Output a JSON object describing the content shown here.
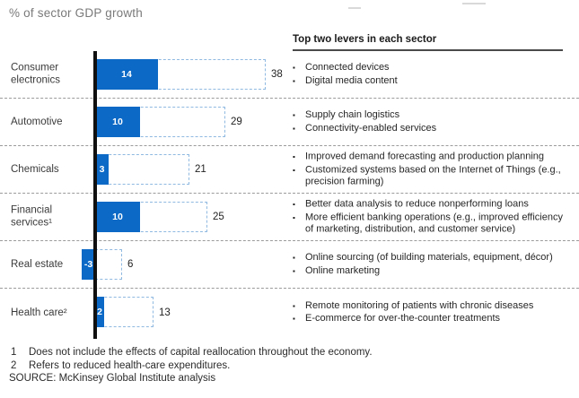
{
  "title": "% of sector GDP growth",
  "levers_header": "Top two levers in each sector",
  "colors": {
    "bar_blue": "#0c6ac6",
    "dashed_bar_border": "#8fb9e0",
    "axis_black": "#101010",
    "title_gray": "#7a7a7a",
    "separator_gray": "#9b9b9b"
  },
  "chart_data": {
    "type": "bar",
    "orientation": "horizontal",
    "title": "% of sector GDP growth",
    "categories": [
      "Consumer electronics",
      "Automotive",
      "Chemicals",
      "Financial services¹",
      "Real estate",
      "Health care²"
    ],
    "series": [
      {
        "name": "solid blue bar",
        "values": [
          14,
          10,
          3,
          10,
          -3,
          2
        ]
      },
      {
        "name": "dashed outline bar (total)",
        "values": [
          38,
          29,
          21,
          25,
          6,
          13
        ]
      }
    ],
    "xlim": [
      -5,
      40
    ],
    "baseline": 0,
    "grid": false,
    "value_labels": true,
    "legend_position": "none"
  },
  "rows": [
    {
      "label": "Consumer electronics",
      "solid": 14,
      "dashed": 38,
      "levers": [
        "Connected devices",
        "Digital media content"
      ]
    },
    {
      "label": "Automotive",
      "solid": 10,
      "dashed": 29,
      "levers": [
        "Supply chain logistics",
        "Connectivity-enabled services"
      ]
    },
    {
      "label": "Chemicals",
      "solid": 3,
      "dashed": 21,
      "levers": [
        "Improved demand forecasting and production planning",
        "Customized systems based on the Internet of Things (e.g., precision farming)"
      ]
    },
    {
      "label": "Financial services¹",
      "solid": 10,
      "dashed": 25,
      "levers": [
        "Better data analysis to reduce nonperforming loans",
        "More efficient banking operations (e.g., improved efficiency of marketing, distribution, and customer service)"
      ]
    },
    {
      "label": "Real estate",
      "solid": -3,
      "dashed": 6,
      "levers": [
        "Online sourcing (of building materials, equipment, décor)",
        "Online marketing"
      ]
    },
    {
      "label": "Health care²",
      "solid": 2,
      "dashed": 13,
      "levers": [
        "Remote monitoring of patients with chronic diseases",
        "E-commerce for over-the-counter treatments"
      ]
    }
  ],
  "bullet_glyph": "▪",
  "footnotes": [
    {
      "num": "1",
      "text": "Does not include the effects of capital reallocation throughout the economy."
    },
    {
      "num": "2",
      "text": "Refers to reduced health-care expenditures."
    }
  ],
  "source": "SOURCE: McKinsey Global Institute analysis"
}
